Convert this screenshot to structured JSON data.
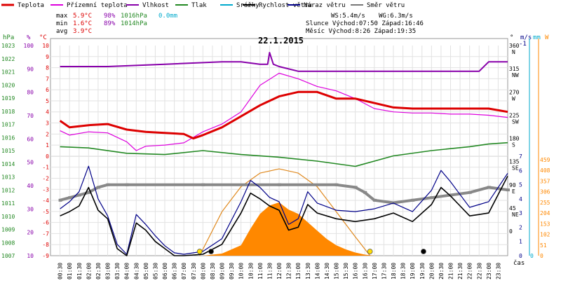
{
  "chart_data": {
    "type": "line",
    "title": "22.1.2015",
    "legend": [
      {
        "label": "Teplota",
        "color": "#dd0000"
      },
      {
        "label": "Přízemní teplota",
        "color": "#dd00dd"
      },
      {
        "label": "Vlhkost",
        "color": "#8800aa"
      },
      {
        "label": "Tlak",
        "color": "#228822"
      },
      {
        "label": "Srážky",
        "color": "#00aacc"
      },
      {
        "label": "Rychlost větru",
        "color": "#000000"
      },
      {
        "label": "Náraz větru",
        "color": "#000088"
      },
      {
        "label": "Směr větru",
        "color": "#777777"
      }
    ],
    "stats": {
      "max": {
        "label": "max",
        "temp": "5.9°C",
        "hum": "98%",
        "press": "1016hPa",
        "rain": "0.0mm"
      },
      "min": {
        "label": "min",
        "temp": "1.6°C",
        "hum": "89%",
        "press": "1014hPa"
      },
      "avg": {
        "label": "avg",
        "temp": "3.9°C"
      }
    },
    "info": {
      "ws": "WS:5.4m/s",
      "wg": "WG:6.3m/s",
      "sun": "Slunce Východ:07:50   Západ:16:46",
      "moon": "Měsíc  Východ:8:26    Západ:19:35"
    },
    "axes": {
      "hpa_unit": "hPa",
      "pct_unit": "%",
      "temp_unit": "°C",
      "deg_unit": "°",
      "ms_unit": "m/s",
      "mm_unit": "mm",
      "w_unit": "W",
      "time_label": "čas",
      "hpa_ticks": [
        "1023",
        "1022",
        "1021",
        "1020",
        "1019",
        "1018",
        "1017",
        "1016",
        "1015",
        "1014",
        "1013",
        "1012",
        "1011",
        "1010",
        "1009",
        "1008",
        "1007"
      ],
      "pct_ticks": [
        "100",
        "90",
        "80",
        "70",
        "60",
        "50",
        "40",
        "30",
        "20",
        "10"
      ],
      "temp_ticks": [
        "10",
        "9",
        "8",
        "7",
        "6",
        "5",
        "4",
        "3",
        "2",
        "1",
        "0",
        "-1",
        "-2",
        "-3",
        "-4",
        "-5",
        "-6",
        "-7",
        "-8",
        "-9"
      ],
      "dir_ticks": [
        {
          "deg": "360",
          "dir": "N"
        },
        {
          "deg": "315",
          "dir": "NW"
        },
        {
          "deg": "270",
          "dir": "W"
        },
        {
          "deg": "225",
          "dir": "SW"
        },
        {
          "deg": "180",
          "dir": "S"
        },
        {
          "deg": "135",
          "dir": "SE"
        },
        {
          "deg": "90",
          "dir": "E"
        },
        {
          "deg": "45",
          "dir": "NE"
        },
        {
          "deg": "0",
          "dir": ""
        }
      ],
      "ms_top": "-1",
      "ms_ticks": [
        "7",
        "6",
        "5",
        "4",
        "3",
        "2",
        "1",
        "0"
      ],
      "mm_ticks": [
        "0"
      ],
      "w_ticks": [
        "459",
        "408",
        "357",
        "306",
        "255",
        "204",
        "153",
        "102",
        "51",
        "0"
      ],
      "time_ticks": [
        "00:30",
        "01:00",
        "01:30",
        "02:00",
        "02:30",
        "03:00",
        "03:30",
        "04:00",
        "04:30",
        "05:00",
        "05:30",
        "06:00",
        "06:30",
        "07:00",
        "07:30",
        "08:00",
        "08:30",
        "09:00",
        "09:30",
        "10:00",
        "10:30",
        "11:00",
        "11:30",
        "12:00",
        "12:30",
        "13:00",
        "13:30",
        "14:00",
        "14:30",
        "15:00",
        "15:30",
        "16:00",
        "16:30",
        "17:00",
        "17:30",
        "18:00",
        "18:30",
        "19:00",
        "19:30",
        "20:00",
        "20:30",
        "21:00",
        "21:30",
        "22:00",
        "22:30",
        "23:00",
        "23:30"
      ]
    },
    "series": {
      "temperature": {
        "name": "Teplota",
        "x": [
          0.5,
          1,
          2,
          3,
          4,
          5,
          6,
          7,
          7.5,
          8,
          9,
          10,
          11,
          12,
          13,
          14,
          15,
          16,
          17,
          18,
          19,
          20,
          21,
          22,
          23,
          24
        ],
        "y": [
          3.2,
          2.6,
          2.8,
          2.9,
          2.4,
          2.2,
          2.1,
          2.0,
          1.6,
          1.9,
          2.6,
          3.6,
          4.6,
          5.4,
          5.8,
          5.8,
          5.2,
          5.2,
          4.8,
          4.4,
          4.3,
          4.3,
          4.3,
          4.3,
          4.3,
          4.0
        ]
      },
      "ground_temp": {
        "name": "Přízemní teplota",
        "x": [
          0.5,
          1,
          2,
          3,
          4,
          4.5,
          5,
          6,
          7,
          8,
          9,
          10,
          11,
          12,
          13,
          14,
          15,
          16,
          17,
          18,
          19,
          20,
          21,
          22,
          23,
          24
        ],
        "y": [
          2.3,
          1.9,
          2.2,
          2.1,
          1.3,
          0.5,
          0.9,
          1.0,
          1.2,
          2.2,
          2.9,
          4.0,
          6.4,
          7.5,
          7.0,
          6.3,
          5.9,
          5.2,
          4.3,
          4.0,
          3.9,
          3.9,
          3.8,
          3.8,
          3.7,
          3.5
        ]
      },
      "humidity": {
        "name": "Vlhkost",
        "x": [
          0.5,
          3,
          6,
          9,
          10,
          11,
          11.4,
          11.5,
          11.7,
          12,
          13,
          15,
          18,
          21,
          22.5,
          23,
          24
        ],
        "y": [
          91,
          91,
          92,
          93,
          93,
          92,
          92,
          97,
          92,
          91,
          89,
          89,
          89,
          89,
          89,
          93,
          93
        ]
      },
      "pressure": {
        "name": "Tlak",
        "x": [
          0.5,
          2,
          4,
          6,
          8,
          10,
          12,
          14,
          16,
          17,
          18,
          20,
          22,
          23,
          24
        ],
        "y": [
          1015.3,
          1015.2,
          1014.8,
          1014.7,
          1015.0,
          1014.7,
          1014.5,
          1014.2,
          1013.8,
          1014.2,
          1014.6,
          1015.0,
          1015.3,
          1015.5,
          1015.6
        ]
      },
      "wind_speed": {
        "name": "Rychlost větru",
        "x": [
          0.5,
          1,
          1.5,
          2,
          2.5,
          3,
          3.5,
          4,
          4.5,
          5,
          5.5,
          6,
          6.5,
          7,
          8,
          9,
          10,
          10.5,
          11,
          11.5,
          12,
          12.5,
          13,
          13.5,
          14,
          15,
          16,
          17,
          18,
          19,
          20,
          20.5,
          21,
          21.5,
          22,
          22.5,
          23,
          24
        ],
        "y": [
          2.8,
          3.1,
          3.5,
          4.8,
          3.2,
          2.6,
          0.5,
          0.0,
          2.3,
          1.8,
          1.0,
          0.5,
          0.0,
          0.0,
          0.1,
          0.8,
          3.0,
          4.4,
          4.0,
          3.5,
          3.2,
          1.8,
          2.0,
          3.6,
          3.0,
          2.6,
          2.4,
          2.6,
          3.0,
          2.4,
          3.6,
          4.8,
          4.2,
          3.5,
          2.8,
          2.9,
          3.0,
          5.6
        ]
      },
      "wind_gust": {
        "name": "Náraz větru",
        "x": [
          0.5,
          1,
          1.5,
          2,
          2.5,
          3,
          3.5,
          4,
          4.5,
          5,
          5.5,
          6,
          6.5,
          7,
          8,
          9,
          10,
          10.5,
          11,
          11.5,
          12,
          12.5,
          13,
          13.5,
          14,
          15,
          16,
          17,
          18,
          19,
          20,
          20.5,
          21,
          21.5,
          22,
          22.5,
          23,
          24
        ],
        "y": [
          3.3,
          3.8,
          4.5,
          6.3,
          4.0,
          2.8,
          0.8,
          0.1,
          2.9,
          2.2,
          1.4,
          0.7,
          0.2,
          0.1,
          0.3,
          1.2,
          3.8,
          5.3,
          4.8,
          4.1,
          3.8,
          2.2,
          2.6,
          4.5,
          3.7,
          3.2,
          3.1,
          3.3,
          3.7,
          3.1,
          4.6,
          6.0,
          5.2,
          4.3,
          3.4,
          3.6,
          3.8,
          5.8
        ]
      },
      "wind_dir": {
        "name": "Směr větru",
        "x": [
          0.5,
          1,
          1.5,
          2,
          2.5,
          3,
          4,
          8,
          12,
          15,
          16,
          16.5,
          17,
          18,
          19,
          20,
          21,
          22,
          23,
          24
        ],
        "y": [
          60,
          65,
          70,
          75,
          85,
          90,
          90,
          90,
          90,
          90,
          85,
          75,
          60,
          55,
          60,
          65,
          70,
          75,
          85,
          80
        ]
      },
      "solar": {
        "name": "",
        "x": [
          8,
          9,
          10,
          10.5,
          11,
          11.5,
          12,
          12.5,
          13,
          13.5,
          14,
          14.5,
          15,
          15.5,
          16,
          16.5,
          17
        ],
        "y": [
          0,
          10,
          50,
          130,
          200,
          240,
          255,
          220,
          200,
          160,
          120,
          80,
          50,
          30,
          15,
          5,
          0
        ]
      },
      "solar_max": {
        "name": "",
        "x": [
          7.83,
          9,
          10,
          11,
          12,
          13,
          14,
          15,
          16,
          16.77
        ],
        "y": [
          0,
          210,
          330,
          395,
          415,
          395,
          330,
          210,
          90,
          0
        ]
      }
    },
    "markers": [
      {
        "type": "sunrise",
        "x": 7.83,
        "color": "#ffdd00"
      },
      {
        "type": "moonrise",
        "x": 8.43,
        "color": "#000000"
      },
      {
        "type": "sunset",
        "x": 16.77,
        "color": "#ffdd00"
      },
      {
        "type": "moonset",
        "x": 19.58,
        "color": "#000000"
      }
    ],
    "ranges": {
      "hpa": [
        1007,
        1023
      ],
      "pct": [
        10,
        100
      ],
      "temp": [
        -9,
        10
      ],
      "dir": [
        0,
        360
      ],
      "ms": [
        0,
        7
      ],
      "w": [
        0,
        459
      ],
      "time": [
        0,
        24
      ]
    },
    "grid": true
  }
}
